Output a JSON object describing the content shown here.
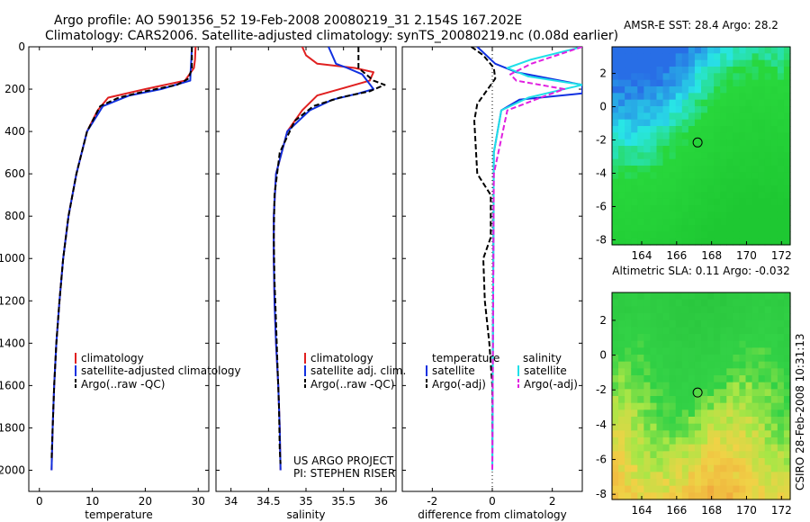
{
  "header": {
    "line1": "Argo profile: AO 5901356_52 19-Feb-2008 20080219_31 2.154S 167.202E",
    "line2": "Climatology: CARS2006. Satellite-adjusted climatology: synTS_20080219.nc (0.08d earlier)"
  },
  "side_label": "CSIRO 28-Feb-2008 10:31:13",
  "colors": {
    "climatology": "#e02020",
    "satellite": "#1030e0",
    "argo": "#000000",
    "sal_sat": "#20e0e8",
    "sal_argo": "#e020e0"
  },
  "chart_data": [
    {
      "id": "temp",
      "type": "line",
      "xlabel": "temperature",
      "xlim": [
        -2,
        32
      ],
      "ylim": [
        0,
        2100
      ],
      "xticks": [
        0,
        10,
        20,
        30
      ],
      "yticks": [
        0,
        200,
        400,
        600,
        800,
        1000,
        1200,
        1400,
        1600,
        1800,
        2000
      ],
      "legend": [
        "climatology",
        "satellite-adjusted climatology",
        "Argo(..raw -QC)"
      ],
      "series": [
        {
          "name": "climatology",
          "color": "climatology",
          "dash": false,
          "points": [
            [
              29.5,
              0
            ],
            [
              29.4,
              60
            ],
            [
              29.2,
              100
            ],
            [
              27.5,
              160
            ],
            [
              20,
              200
            ],
            [
              13,
              240
            ],
            [
              11,
              300
            ],
            [
              9,
              400
            ],
            [
              7,
              600
            ],
            [
              5.5,
              800
            ],
            [
              4.5,
              1000
            ],
            [
              3.8,
              1200
            ],
            [
              3.2,
              1400
            ],
            [
              2.8,
              1600
            ],
            [
              2.5,
              1800
            ],
            [
              2.3,
              2000
            ]
          ]
        },
        {
          "name": "satellite-adjusted climatology",
          "color": "satellite",
          "dash": false,
          "points": [
            [
              28.8,
              0
            ],
            [
              28.7,
              60
            ],
            [
              28.6,
              100
            ],
            [
              28.5,
              160
            ],
            [
              23,
              200
            ],
            [
              17,
              230
            ],
            [
              12,
              280
            ],
            [
              9,
              400
            ],
            [
              7,
              600
            ],
            [
              5.5,
              800
            ],
            [
              4.5,
              1000
            ],
            [
              3.8,
              1200
            ],
            [
              3.2,
              1400
            ],
            [
              2.8,
              1600
            ],
            [
              2.5,
              1800
            ],
            [
              2.3,
              2000
            ]
          ]
        },
        {
          "name": "Argo(..raw -QC)",
          "color": "argo",
          "dash": true,
          "points": [
            [
              28.8,
              0
            ],
            [
              28.8,
              100
            ],
            [
              28.2,
              150
            ],
            [
              26,
              180
            ],
            [
              20,
              210
            ],
            [
              15,
              240
            ],
            [
              11.5,
              280
            ],
            [
              9,
              400
            ],
            [
              7,
              600
            ],
            [
              5.5,
              800
            ],
            [
              4.5,
              1000
            ],
            [
              3.8,
              1200
            ],
            [
              3.2,
              1400
            ],
            [
              2.8,
              1600
            ],
            [
              2.5,
              1800
            ],
            [
              2.3,
              1950
            ]
          ]
        }
      ]
    },
    {
      "id": "sal",
      "type": "line",
      "xlabel": "salinity",
      "xlim": [
        33.8,
        36.2
      ],
      "ylim": [
        0,
        2100
      ],
      "xticks": [
        34,
        34.5,
        35,
        35.5,
        36
      ],
      "xticklabels": [
        "34",
        "34.5",
        "35",
        "35.5",
        "36"
      ],
      "legend": [
        "climatology",
        "satellite adj. clim.",
        "Argo(..raw -QC)"
      ],
      "annotation": [
        "US ARGO PROJECT",
        "PI: STEPHEN RISER"
      ],
      "series": [
        {
          "name": "climatology",
          "color": "climatology",
          "dash": false,
          "points": [
            [
              34.95,
              0
            ],
            [
              35.0,
              40
            ],
            [
              35.15,
              80
            ],
            [
              35.65,
              100
            ],
            [
              35.9,
              120
            ],
            [
              35.85,
              160
            ],
            [
              35.55,
              190
            ],
            [
              35.15,
              230
            ],
            [
              34.95,
              300
            ],
            [
              34.75,
              400
            ],
            [
              34.6,
              600
            ],
            [
              34.57,
              800
            ],
            [
              34.57,
              1000
            ],
            [
              34.58,
              1200
            ],
            [
              34.6,
              1400
            ],
            [
              34.63,
              1600
            ],
            [
              34.65,
              1800
            ],
            [
              34.66,
              2000
            ]
          ]
        },
        {
          "name": "satellite adj. clim.",
          "color": "satellite",
          "dash": false,
          "points": [
            [
              35.3,
              0
            ],
            [
              35.35,
              40
            ],
            [
              35.4,
              80
            ],
            [
              35.55,
              100
            ],
            [
              35.75,
              130
            ],
            [
              35.9,
              200
            ],
            [
              35.7,
              220
            ],
            [
              35.35,
              250
            ],
            [
              35.05,
              300
            ],
            [
              34.75,
              400
            ],
            [
              34.6,
              600
            ],
            [
              34.57,
              800
            ],
            [
              34.57,
              1000
            ],
            [
              34.58,
              1200
            ],
            [
              34.6,
              1400
            ],
            [
              34.63,
              1600
            ],
            [
              34.65,
              1800
            ],
            [
              34.66,
              2000
            ]
          ]
        },
        {
          "name": "Argo(..raw -QC)",
          "color": "argo",
          "dash": true,
          "points": [
            [
              35.7,
              0
            ],
            [
              35.7,
              100
            ],
            [
              35.9,
              160
            ],
            [
              36.05,
              180
            ],
            [
              35.85,
              210
            ],
            [
              35.45,
              240
            ],
            [
              35.1,
              280
            ],
            [
              34.85,
              350
            ],
            [
              34.65,
              500
            ],
            [
              34.58,
              700
            ],
            [
              34.57,
              900
            ],
            [
              34.58,
              1100
            ],
            [
              34.6,
              1300
            ],
            [
              34.62,
              1500
            ],
            [
              34.64,
              1700
            ],
            [
              34.65,
              1900
            ],
            [
              34.66,
              1970
            ]
          ]
        }
      ]
    },
    {
      "id": "diff",
      "type": "line",
      "xlabel": "difference from climatology",
      "xlim": [
        -3,
        3
      ],
      "ylim": [
        0,
        2100
      ],
      "xticks": [
        -2,
        0,
        2
      ],
      "legend_headers": [
        "temperature",
        "salinity"
      ],
      "legend": [
        "satellite",
        "Argo(-adj)",
        "satellite",
        "Argo(-adj)"
      ],
      "series": [
        {
          "name": "temperature satellite",
          "color": "satellite",
          "dash": false,
          "points": [
            [
              -0.5,
              0
            ],
            [
              0.1,
              80
            ],
            [
              0.8,
              120
            ],
            [
              3,
              180
            ],
            [
              3,
              220
            ],
            [
              0.9,
              250
            ],
            [
              0.3,
              300
            ],
            [
              0.05,
              500
            ],
            [
              0,
              2000
            ]
          ]
        },
        {
          "name": "temperature Argo(-adj)",
          "color": "argo",
          "dash": true,
          "points": [
            [
              -0.7,
              0
            ],
            [
              -0.3,
              40
            ],
            [
              0.05,
              100
            ],
            [
              0.1,
              150
            ],
            [
              -0.5,
              270
            ],
            [
              -0.6,
              350
            ],
            [
              -0.5,
              600
            ],
            [
              -0.05,
              700
            ],
            [
              -0.05,
              900
            ],
            [
              -0.3,
              1000
            ],
            [
              -0.25,
              1200
            ],
            [
              -0.1,
              1400
            ],
            [
              0,
              1600
            ],
            [
              0,
              1800
            ],
            [
              0,
              2000
            ]
          ]
        },
        {
          "name": "salinity satellite",
          "color": "sal_sat",
          "dash": false,
          "points": [
            [
              3,
              0
            ],
            [
              1.3,
              60
            ],
            [
              0.5,
              100
            ],
            [
              1.2,
              140
            ],
            [
              3,
              180
            ],
            [
              1.2,
              240
            ],
            [
              0.3,
              300
            ],
            [
              0.05,
              500
            ],
            [
              0,
              2000
            ]
          ]
        },
        {
          "name": "salinity Argo(-adj)",
          "color": "sal_argo",
          "dash": true,
          "points": [
            [
              3,
              0
            ],
            [
              1.3,
              80
            ],
            [
              0.6,
              130
            ],
            [
              0.8,
              160
            ],
            [
              2.4,
              200
            ],
            [
              1.8,
              230
            ],
            [
              0.5,
              300
            ],
            [
              0.05,
              600
            ],
            [
              0,
              2000
            ]
          ]
        }
      ]
    }
  ],
  "maps": [
    {
      "id": "sst",
      "title": "AMSR-E SST: 28.4  Argo: 28.2",
      "type": "heatmap",
      "xlim": [
        162.3,
        172.5
      ],
      "ylim": [
        -8.3,
        3.6
      ],
      "xticks": [
        164,
        166,
        168,
        170,
        172
      ],
      "yticks": [
        2,
        0,
        -2,
        -4,
        -6,
        -8
      ],
      "marker": [
        167.2,
        -2.15
      ],
      "palette": "sst"
    },
    {
      "id": "sla",
      "title": "Altimetric SLA: 0.11  Argo: -0.032",
      "type": "heatmap",
      "xlim": [
        162.3,
        172.5
      ],
      "ylim": [
        -8.3,
        3.6
      ],
      "xticks": [
        164,
        166,
        168,
        170,
        172
      ],
      "yticks": [
        2,
        0,
        -2,
        -4,
        -6,
        -8
      ],
      "marker": [
        167.2,
        -2.15
      ],
      "palette": "sla"
    }
  ]
}
